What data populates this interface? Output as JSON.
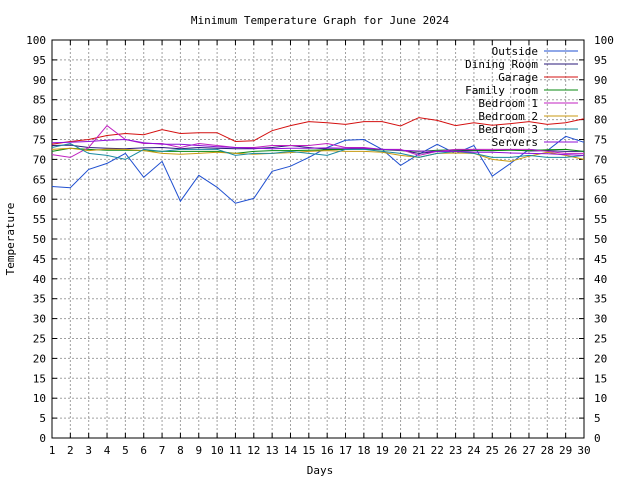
{
  "chart_data": {
    "type": "line",
    "title": "Minimum Temperature Graph for June 2024",
    "xlabel": "Days",
    "ylabel": "Temperature",
    "xlim": [
      1,
      30
    ],
    "ylim": [
      0,
      100
    ],
    "x_ticks": [
      1,
      2,
      3,
      4,
      5,
      6,
      7,
      8,
      9,
      10,
      11,
      12,
      13,
      14,
      15,
      16,
      17,
      18,
      19,
      20,
      21,
      22,
      23,
      24,
      25,
      26,
      27,
      28,
      29,
      30
    ],
    "y_ticks": [
      0,
      5,
      10,
      15,
      20,
      25,
      30,
      35,
      40,
      45,
      50,
      55,
      60,
      65,
      70,
      75,
      80,
      85,
      90,
      95,
      100
    ],
    "grid": true,
    "legend_position": "top-right",
    "x": [
      1,
      2,
      3,
      4,
      5,
      6,
      7,
      8,
      9,
      10,
      11,
      12,
      13,
      14,
      15,
      16,
      17,
      18,
      19,
      20,
      21,
      22,
      23,
      24,
      25,
      26,
      27,
      28,
      29,
      30
    ],
    "series": [
      {
        "name": "Outside",
        "color": "#1f4fd0",
        "values": [
          63.2,
          62.9,
          67.5,
          69,
          71.5,
          65.5,
          69.5,
          59.5,
          66,
          63,
          59,
          60.2,
          67,
          68.3,
          70.5,
          73,
          74.8,
          75,
          72.5,
          68.5,
          71.3,
          73.8,
          71.5,
          73.5,
          65.8,
          69,
          72.5,
          72.2,
          75.8,
          74.3
        ]
      },
      {
        "name": "Dining Room",
        "color": "#2a1a7a",
        "values": [
          73.5,
          73.6,
          73,
          72.8,
          72.7,
          72.9,
          73,
          72.7,
          73,
          72.8,
          72.7,
          72.7,
          73,
          73.5,
          73,
          72.6,
          72.5,
          72.8,
          72.5,
          72.3,
          71.5,
          72,
          72.1,
          72.2,
          72.2,
          72.4,
          72.1,
          72.2,
          72,
          72
        ]
      },
      {
        "name": "Garage",
        "color": "#d41010",
        "values": [
          73.8,
          74.5,
          75,
          76,
          76.5,
          76.2,
          77.5,
          76.5,
          76.7,
          76.7,
          74.5,
          74.7,
          77.2,
          78.5,
          79.5,
          79.2,
          78.8,
          79.5,
          79.5,
          78.4,
          80.5,
          79.8,
          78.5,
          79.2,
          78.6,
          79,
          79.5,
          78.8,
          79.2,
          80.2
        ]
      },
      {
        "name": "Family room",
        "color": "#0a8a10",
        "values": [
          72,
          72.8,
          72.5,
          72.3,
          72.3,
          72.2,
          72,
          72,
          72,
          72,
          71.5,
          72,
          72.2,
          72.2,
          72.3,
          72.4,
          72.5,
          72.6,
          72.4,
          72.2,
          72,
          72.3,
          72.4,
          72.3,
          72.2,
          72.3,
          72.2,
          72.4,
          72.5,
          72
        ]
      },
      {
        "name": "Bedroom 1",
        "color": "#c020c0",
        "values": [
          71.2,
          70.5,
          73,
          78.5,
          75,
          74,
          74,
          73,
          74,
          73.5,
          73,
          73,
          73.5,
          73.5,
          73.5,
          74,
          73,
          73,
          72.5,
          72.5,
          71,
          72,
          72.5,
          72.5,
          72.5,
          72.5,
          72.5,
          72,
          71.5,
          71.5
        ]
      },
      {
        "name": "Bedroom 2",
        "color": "#c89a10",
        "values": [
          72.5,
          72.8,
          72.2,
          72.6,
          72.5,
          72.2,
          71.5,
          71.3,
          71.5,
          71.8,
          71.5,
          71.3,
          71.5,
          71.7,
          72,
          72.2,
          72,
          72,
          71.8,
          71,
          70.5,
          71.5,
          71.6,
          71.5,
          70,
          69.5,
          70.8,
          71.8,
          71,
          70
        ]
      },
      {
        "name": "Bedroom 3",
        "color": "#1a8aa0",
        "values": [
          73,
          74,
          71.5,
          71,
          70,
          72.5,
          72,
          72.5,
          72.5,
          72.5,
          71,
          71.5,
          71.5,
          72,
          71.5,
          71,
          72.5,
          72.5,
          72,
          71.5,
          70.5,
          71.5,
          72,
          71.5,
          70.5,
          70.5,
          71,
          70.5,
          70.5,
          71
        ]
      },
      {
        "name": "Servers",
        "color": "#9010d8",
        "values": [
          74.2,
          74.3,
          74.5,
          74.8,
          75,
          74.2,
          73.8,
          73.8,
          73.5,
          73.2,
          73,
          72.8,
          72.7,
          72.8,
          72.8,
          72.9,
          72.8,
          72.8,
          72.5,
          72.3,
          72.1,
          72,
          72,
          71.8,
          71.8,
          71.6,
          71.5,
          71.4,
          71.2,
          71
        ]
      }
    ]
  }
}
